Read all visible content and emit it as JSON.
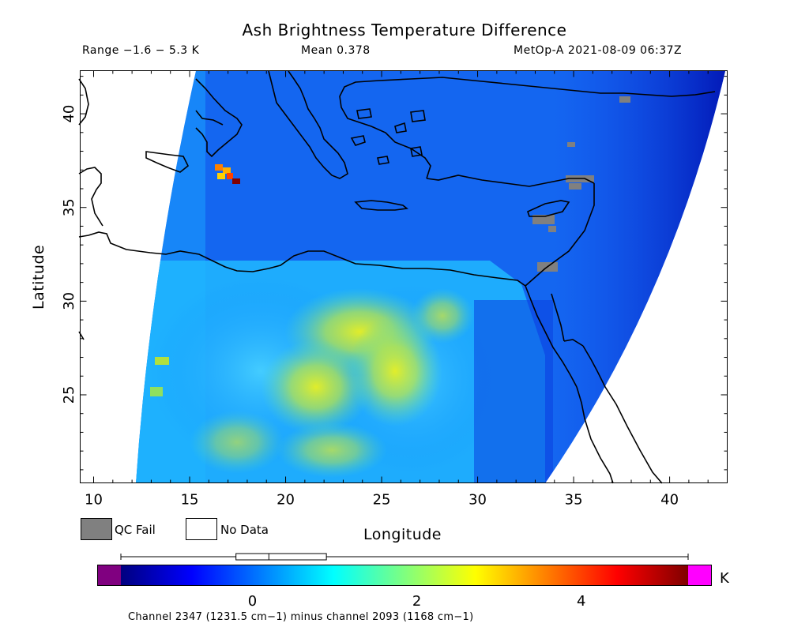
{
  "header": {
    "title": "Ash Brightness Temperature Difference",
    "range_text": "Range −1.6 − 5.3 K",
    "mean_text": "Mean 0.378",
    "satellite_text": "MetOp-A 2021-08-09 06:37Z"
  },
  "axes": {
    "x_label": "Longitude",
    "y_label": "Latitude",
    "x_ticks": [
      "10",
      "15",
      "20",
      "25",
      "30",
      "35",
      "40"
    ],
    "y_ticks": [
      "25",
      "30",
      "35",
      "40"
    ],
    "x_range": [
      9.3,
      43.0
    ],
    "y_range": [
      20.3,
      42.3
    ]
  },
  "legend": {
    "qc_fail_label": "QC Fail",
    "qc_fail_color": "#808080",
    "no_data_label": "No Data",
    "no_data_color": "#ffffff"
  },
  "colorbar": {
    "ticks": [
      "0",
      "2",
      "4"
    ],
    "tick_values": [
      0,
      2,
      4
    ],
    "range": [
      -1.6,
      5.3
    ],
    "unit": "K",
    "caption": "Channel 2347 (1231.5 cm−1) minus channel 2093 (1168 cm−1)",
    "under_color": "#800080",
    "over_color": "#ff00ff",
    "colors": [
      "#00007f",
      "#0000ff",
      "#007fff",
      "#00ffff",
      "#7fff7f",
      "#ffff00",
      "#ff7f00",
      "#ff0000",
      "#7f0000"
    ],
    "boxplot": {
      "min": -1.6,
      "q1": -0.2,
      "median": 0.2,
      "q3": 0.9,
      "max": 5.3
    }
  }
}
